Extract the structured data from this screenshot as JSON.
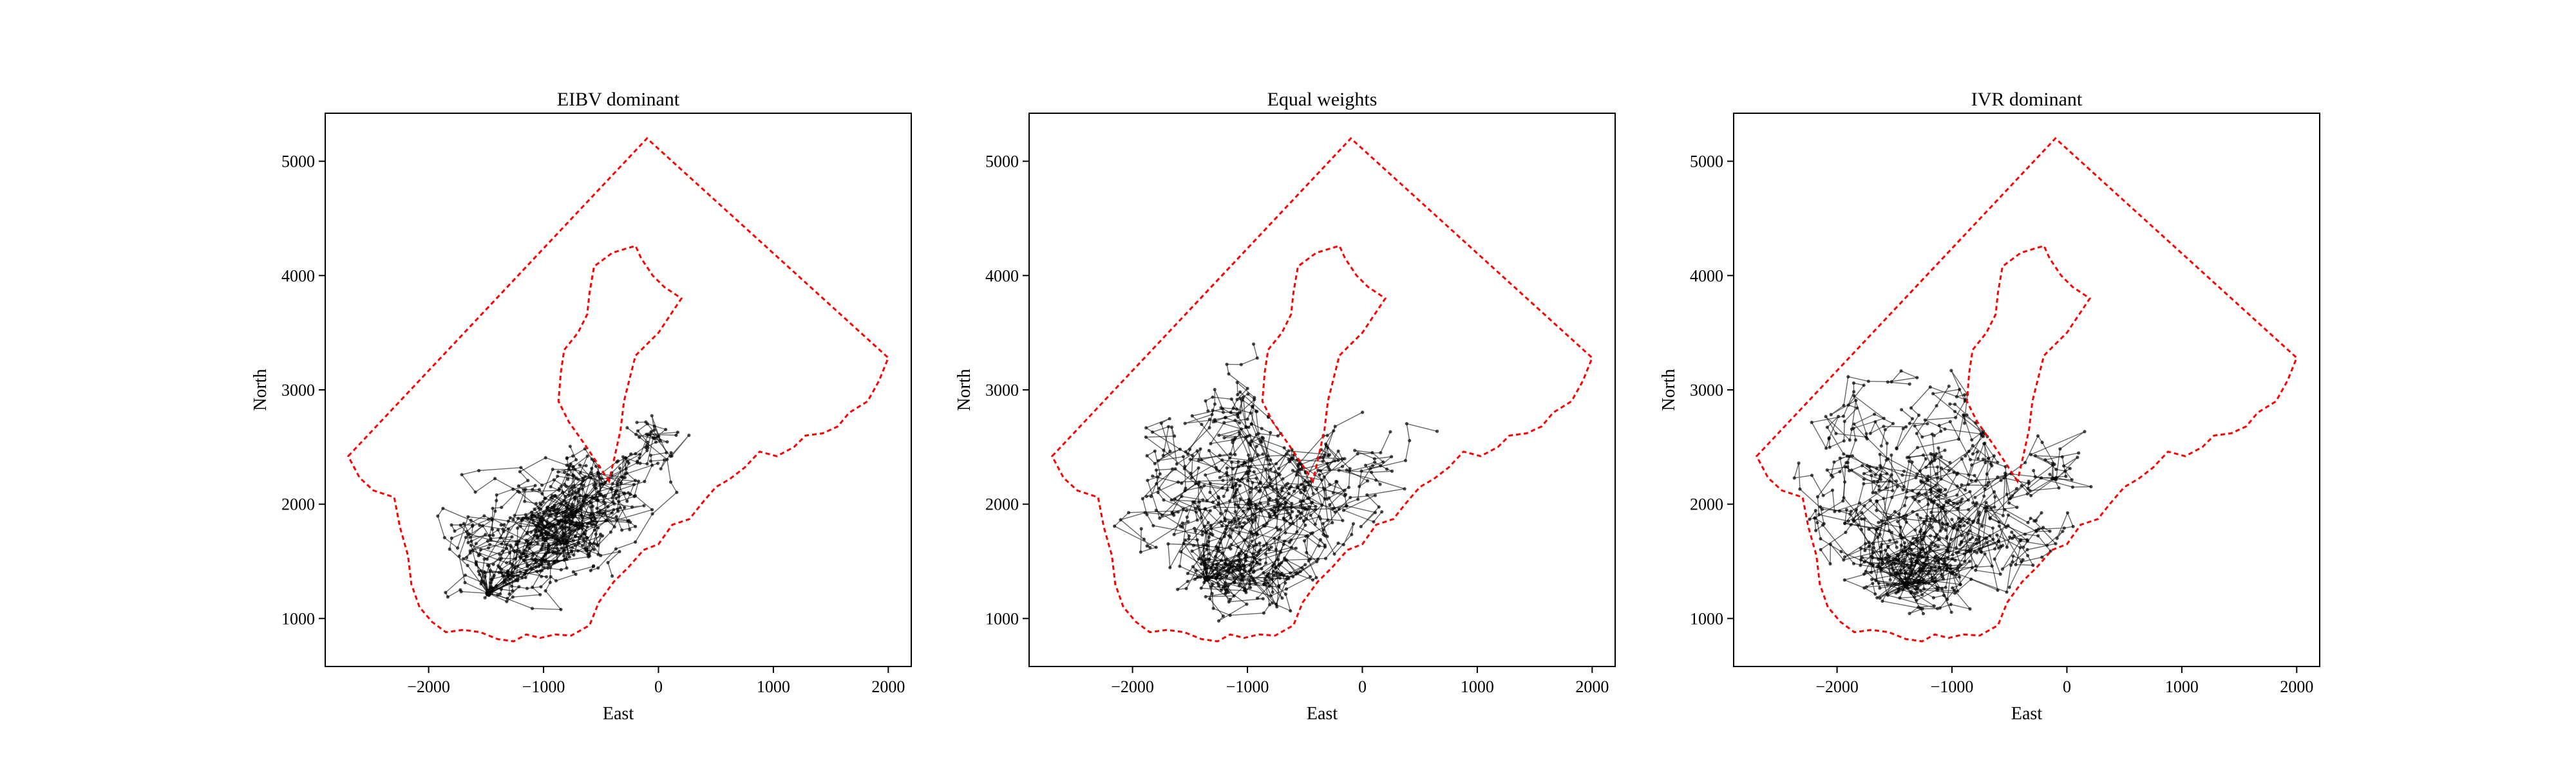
{
  "figure": {
    "background": "#ffffff",
    "boundary_color": "#ff0000",
    "path_color": "#000000"
  },
  "chart_data": [
    {
      "type": "line",
      "title": "EIBV dominant",
      "xlabel": "East",
      "ylabel": "North",
      "xlim": [
        -2900,
        2200
      ],
      "ylim": [
        580,
        5420
      ],
      "xticks": [
        -2000,
        -1000,
        0,
        1000,
        2000
      ],
      "xtick_labels": [
        "−2000",
        "−1000",
        "0",
        "1000",
        "2000"
      ],
      "yticks": [
        1000,
        2000,
        3000,
        4000,
        5000
      ],
      "ytick_labels": [
        "1000",
        "2000",
        "3000",
        "4000",
        "5000"
      ],
      "grid": false,
      "start": [
        -1480,
        1220
      ],
      "centers": [
        [
          -1450,
          1480
        ],
        [
          -1650,
          1800
        ],
        [
          -1250,
          1950
        ],
        [
          -800,
          2000
        ],
        [
          -450,
          1850
        ],
        [
          -300,
          2350
        ],
        [
          0,
          2600
        ],
        [
          300,
          2800
        ],
        [
          500,
          2650
        ],
        [
          -1000,
          1750
        ],
        [
          -600,
          1650
        ],
        [
          -200,
          2100
        ],
        [
          100,
          3000
        ]
      ],
      "spread": [
        220,
        180
      ],
      "n_paths": 30,
      "steps": 26,
      "seed": 11,
      "series": []
    },
    {
      "type": "line",
      "title": "Equal weights",
      "xlabel": "East",
      "ylabel": "North",
      "xlim": [
        -2900,
        2200
      ],
      "ylim": [
        580,
        5420
      ],
      "xticks": [
        -2000,
        -1000,
        0,
        1000,
        2000
      ],
      "xtick_labels": [
        "−2000",
        "−1000",
        "0",
        "1000",
        "2000"
      ],
      "yticks": [
        1000,
        2000,
        3000,
        4000,
        5000
      ],
      "ytick_labels": [
        "1000",
        "2000",
        "3000",
        "4000",
        "5000"
      ],
      "grid": false,
      "start": [
        -1350,
        1350
      ],
      "centers": [
        [
          -1900,
          1800
        ],
        [
          -1700,
          2500
        ],
        [
          -1300,
          2800
        ],
        [
          -1000,
          2300
        ],
        [
          -600,
          2000
        ],
        [
          -300,
          2400
        ],
        [
          100,
          2650
        ],
        [
          400,
          2700
        ],
        [
          600,
          2450
        ],
        [
          -1200,
          1400
        ],
        [
          -800,
          1300
        ],
        [
          -300,
          1700
        ],
        [
          -1500,
          3200
        ],
        [
          -1000,
          3050
        ]
      ],
      "spread": [
        280,
        230
      ],
      "n_paths": 30,
      "steps": 28,
      "seed": 23,
      "series": []
    },
    {
      "type": "line",
      "title": "IVR dominant",
      "xlabel": "East",
      "ylabel": "North",
      "xlim": [
        -2900,
        2200
      ],
      "ylim": [
        580,
        5420
      ],
      "xticks": [
        -2000,
        -1000,
        0,
        1000,
        2000
      ],
      "xtick_labels": [
        "−2000",
        "−1000",
        "0",
        "1000",
        "2000"
      ],
      "yticks": [
        1000,
        2000,
        3000,
        4000,
        5000
      ],
      "ytick_labels": [
        "1000",
        "2000",
        "3000",
        "4000",
        "5000"
      ],
      "grid": false,
      "start": [
        -1400,
        1300
      ],
      "centers": [
        [
          -2100,
          2200
        ],
        [
          -1900,
          2800
        ],
        [
          -1500,
          3300
        ],
        [
          -1100,
          3500
        ],
        [
          -800,
          3000
        ],
        [
          -1300,
          2400
        ],
        [
          -700,
          2000
        ],
        [
          -400,
          1500
        ],
        [
          -1000,
          1200
        ],
        [
          -1600,
          1500
        ],
        [
          0,
          2300
        ],
        [
          300,
          2650
        ],
        [
          700,
          2600
        ],
        [
          -1800,
          1900
        ],
        [
          -200,
          2900
        ]
      ],
      "spread": [
        320,
        260
      ],
      "n_paths": 30,
      "steps": 28,
      "seed": 37,
      "series": []
    }
  ],
  "boundary": {
    "outer": [
      [
        -2700,
        2420
      ],
      [
        -100,
        5200
      ],
      [
        2000,
        3280
      ],
      [
        1920,
        3080
      ],
      [
        1820,
        2900
      ],
      [
        1660,
        2800
      ],
      [
        1560,
        2680
      ],
      [
        1430,
        2620
      ],
      [
        1280,
        2600
      ],
      [
        1180,
        2500
      ],
      [
        1030,
        2420
      ],
      [
        880,
        2460
      ],
      [
        750,
        2320
      ],
      [
        620,
        2220
      ],
      [
        500,
        2150
      ],
      [
        380,
        2010
      ],
      [
        270,
        1870
      ],
      [
        120,
        1820
      ],
      [
        0,
        1650
      ],
      [
        -130,
        1600
      ],
      [
        -260,
        1450
      ],
      [
        -390,
        1320
      ],
      [
        -520,
        1140
      ],
      [
        -600,
        940
      ],
      [
        -760,
        850
      ],
      [
        -900,
        860
      ],
      [
        -1030,
        830
      ],
      [
        -1150,
        860
      ],
      [
        -1260,
        800
      ],
      [
        -1400,
        820
      ],
      [
        -1550,
        880
      ],
      [
        -1700,
        900
      ],
      [
        -1850,
        880
      ],
      [
        -1970,
        970
      ],
      [
        -2080,
        1100
      ],
      [
        -2150,
        1300
      ],
      [
        -2180,
        1550
      ],
      [
        -2250,
        1800
      ],
      [
        -2300,
        2060
      ],
      [
        -2480,
        2120
      ],
      [
        -2600,
        2230
      ],
      [
        -2700,
        2420
      ]
    ],
    "inner": [
      [
        -430,
        2200
      ],
      [
        -520,
        2340
      ],
      [
        -640,
        2520
      ],
      [
        -780,
        2720
      ],
      [
        -870,
        2900
      ],
      [
        -850,
        3150
      ],
      [
        -820,
        3350
      ],
      [
        -700,
        3500
      ],
      [
        -620,
        3660
      ],
      [
        -600,
        3850
      ],
      [
        -560,
        4080
      ],
      [
        -400,
        4200
      ],
      [
        -200,
        4260
      ],
      [
        -150,
        4150
      ],
      [
        -50,
        4000
      ],
      [
        50,
        3900
      ],
      [
        200,
        3800
      ],
      [
        100,
        3650
      ],
      [
        0,
        3500
      ],
      [
        -100,
        3400
      ],
      [
        -200,
        3300
      ],
      [
        -250,
        3100
      ],
      [
        -300,
        2900
      ],
      [
        -330,
        2650
      ],
      [
        -380,
        2420
      ],
      [
        -430,
        2200
      ]
    ]
  }
}
